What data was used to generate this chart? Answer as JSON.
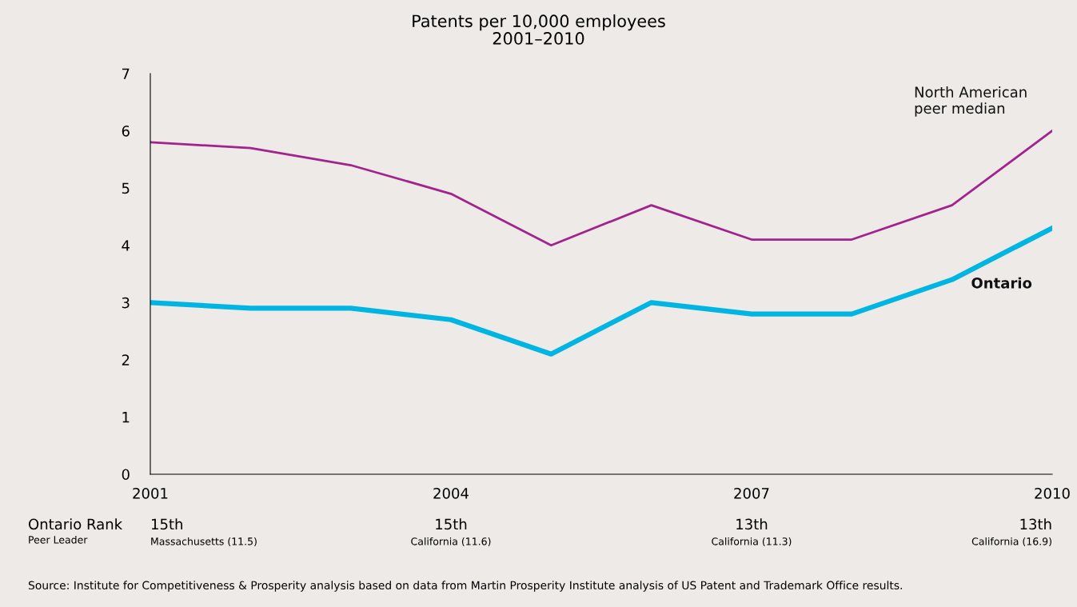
{
  "chart_data": {
    "type": "line",
    "title": "Patents per 10,000 employees\n2001–2010",
    "x": [
      2001,
      2002,
      2003,
      2004,
      2005,
      2006,
      2007,
      2008,
      2009,
      2010
    ],
    "series": [
      {
        "name": "North American\npeer median",
        "color": "#a3238e",
        "values": [
          5.8,
          5.7,
          5.4,
          4.9,
          4.0,
          4.7,
          4.1,
          4.1,
          4.7,
          6.0
        ]
      },
      {
        "name": "Ontario",
        "color": "#00b5e2",
        "values": [
          3.0,
          2.9,
          2.9,
          2.7,
          2.1,
          3.0,
          2.8,
          2.8,
          3.4,
          4.3
        ]
      }
    ],
    "xlim": [
      2001,
      2010
    ],
    "xticks": [
      2001,
      2004,
      2007,
      2010
    ],
    "ylim": [
      0,
      7
    ],
    "yticks": [
      0,
      1,
      2,
      3,
      4,
      5,
      6,
      7
    ],
    "grid": false,
    "legend": false,
    "marker": "none",
    "line_style": "solid",
    "annotations": [
      "Ontario Rank",
      "Peer Leader",
      "15th",
      "Massachusetts (11.5)",
      "15th",
      "California (11.6)",
      "13th",
      "California (11.3)",
      "13th",
      "California (16.9)",
      "Source: Institute for Competitiveness & Prosperity analysis based on data from Martin Prosperity Institute analysis of US Patent and Trademark Office results."
    ]
  }
}
